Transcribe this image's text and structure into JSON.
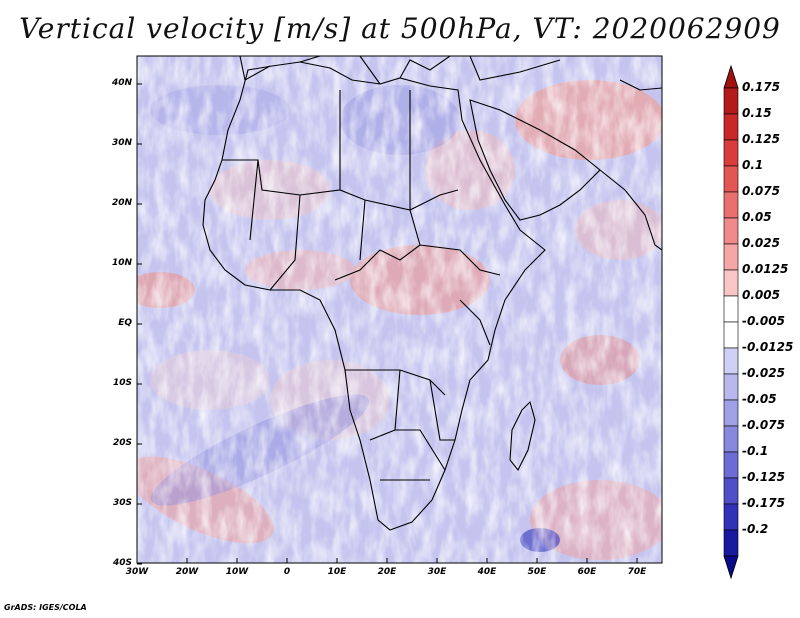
{
  "title": "Vertical velocity [m/s] at 500hPa, VT: 2020062909",
  "lat_labels": [
    "40N",
    "30N",
    "20N",
    "10N",
    "EQ",
    "10S",
    "20S",
    "30S",
    "40S"
  ],
  "lon_labels": [
    "30W",
    "20W",
    "10W",
    "0",
    "10E",
    "20E",
    "30E",
    "40E",
    "50E",
    "60E",
    "70E"
  ],
  "colorbar": {
    "labels": [
      "0.175",
      "0.15",
      "0.125",
      "0.1",
      "0.075",
      "0.05",
      "0.025",
      "0.0125",
      "0.005",
      "-0.005",
      "-0.0125",
      "-0.025",
      "-0.05",
      "-0.075",
      "-0.1",
      "-0.125",
      "-0.175",
      "-0.2"
    ],
    "colors": [
      "#b31a1a",
      "#c82828",
      "#d83c3c",
      "#e35656",
      "#ea7070",
      "#f08a8a",
      "#f5a6a6",
      "#f9c6c6",
      "#ffffff",
      "#ffffff",
      "#d0d0f5",
      "#b8b8ee",
      "#a0a0e6",
      "#8888dd",
      "#6c6cd4",
      "#4f4fc8",
      "#3232b8",
      "#1a1aa0"
    ],
    "top_arrow_color": "#a01010",
    "bottom_arrow_color": "#0a0a8a"
  },
  "credit": "GrADS: IGES/COLA"
}
